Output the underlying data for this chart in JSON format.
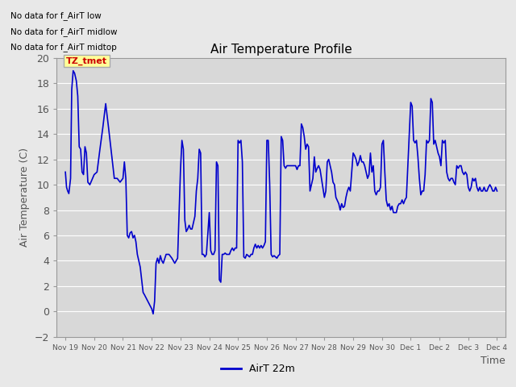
{
  "title": "Air Temperature Profile",
  "xlabel": "Time",
  "ylabel": "Air Temperature (C)",
  "ylim": [
    -2,
    20
  ],
  "yticks": [
    -2,
    0,
    2,
    4,
    6,
    8,
    10,
    12,
    14,
    16,
    18,
    20
  ],
  "line_color": "#0000CC",
  "line_width": 1.2,
  "background_color": "#E8E8E8",
  "plot_bg_color": "#D8D8D8",
  "legend_label": "AirT 22m",
  "text_annotations": [
    "No data for f_AirT low",
    "No data for f_AirT midlow",
    "No data for f_AirT midtop"
  ],
  "legend_box_color": "#FFFF99",
  "legend_box_edge": "#CCCC00",
  "legend_text_color": "#CC0000",
  "legend_box_text": "TZ_tmet",
  "xtick_labels": [
    "Nov 19",
    "Nov 20",
    "Nov 21",
    "Nov 22",
    "Nov 23",
    "Nov 24",
    "Nov 25",
    "Nov 26",
    "Nov 27",
    "Nov 28",
    "Nov 29",
    "Nov 30",
    "Dec 1",
    "Dec 2",
    "Dec 3",
    "Dec 4"
  ],
  "temp_data": [
    [
      0.0,
      11.0
    ],
    [
      0.04,
      9.8
    ],
    [
      0.08,
      9.5
    ],
    [
      0.12,
      9.3
    ],
    [
      0.18,
      10.5
    ],
    [
      0.22,
      17.5
    ],
    [
      0.27,
      19.0
    ],
    [
      0.32,
      18.8
    ],
    [
      0.38,
      18.2
    ],
    [
      0.43,
      17.0
    ],
    [
      0.48,
      13.0
    ],
    [
      0.53,
      12.8
    ],
    [
      0.58,
      11.0
    ],
    [
      0.63,
      10.8
    ],
    [
      0.68,
      13.0
    ],
    [
      0.73,
      12.5
    ],
    [
      0.78,
      10.2
    ],
    [
      0.85,
      10.0
    ],
    [
      1.0,
      10.8
    ],
    [
      1.1,
      11.0
    ],
    [
      1.2,
      12.8
    ],
    [
      1.3,
      14.5
    ],
    [
      1.4,
      16.4
    ],
    [
      1.5,
      14.5
    ],
    [
      1.6,
      12.5
    ],
    [
      1.7,
      10.5
    ],
    [
      1.8,
      10.5
    ],
    [
      1.9,
      10.2
    ],
    [
      2.0,
      10.5
    ],
    [
      2.05,
      11.8
    ],
    [
      2.1,
      10.5
    ],
    [
      2.15,
      6.0
    ],
    [
      2.2,
      5.8
    ],
    [
      2.25,
      6.2
    ],
    [
      2.3,
      6.3
    ],
    [
      2.35,
      5.8
    ],
    [
      2.4,
      6.0
    ],
    [
      2.45,
      5.5
    ],
    [
      2.5,
      4.5
    ],
    [
      2.6,
      3.5
    ],
    [
      2.7,
      1.5
    ],
    [
      2.75,
      1.3
    ],
    [
      3.0,
      0.2
    ],
    [
      3.05,
      -0.2
    ],
    [
      3.1,
      0.8
    ],
    [
      3.15,
      3.8
    ],
    [
      3.2,
      4.2
    ],
    [
      3.25,
      3.8
    ],
    [
      3.3,
      4.4
    ],
    [
      3.35,
      4.0
    ],
    [
      3.4,
      3.8
    ],
    [
      3.5,
      4.5
    ],
    [
      3.6,
      4.5
    ],
    [
      3.7,
      4.2
    ],
    [
      3.8,
      3.8
    ],
    [
      3.9,
      4.2
    ],
    [
      4.0,
      11.2
    ],
    [
      4.05,
      13.5
    ],
    [
      4.1,
      12.8
    ],
    [
      4.15,
      7.2
    ],
    [
      4.2,
      6.3
    ],
    [
      4.25,
      6.5
    ],
    [
      4.3,
      6.8
    ],
    [
      4.35,
      6.5
    ],
    [
      4.4,
      6.5
    ],
    [
      4.45,
      7.0
    ],
    [
      4.5,
      7.5
    ],
    [
      4.55,
      9.5
    ],
    [
      4.6,
      10.5
    ],
    [
      4.65,
      12.8
    ],
    [
      4.7,
      12.5
    ],
    [
      4.75,
      4.5
    ],
    [
      4.8,
      4.5
    ],
    [
      4.85,
      4.3
    ],
    [
      4.9,
      4.5
    ],
    [
      5.0,
      7.8
    ],
    [
      5.05,
      4.8
    ],
    [
      5.1,
      4.5
    ],
    [
      5.15,
      4.5
    ],
    [
      5.2,
      4.8
    ],
    [
      5.25,
      11.8
    ],
    [
      5.3,
      11.5
    ],
    [
      5.35,
      2.5
    ],
    [
      5.4,
      2.3
    ],
    [
      5.45,
      4.5
    ],
    [
      5.5,
      4.5
    ],
    [
      5.55,
      4.6
    ],
    [
      5.6,
      4.5
    ],
    [
      5.65,
      4.5
    ],
    [
      5.7,
      4.5
    ],
    [
      5.75,
      4.8
    ],
    [
      5.8,
      5.0
    ],
    [
      5.85,
      4.8
    ],
    [
      5.9,
      5.0
    ],
    [
      5.95,
      5.0
    ],
    [
      6.0,
      13.5
    ],
    [
      6.05,
      13.3
    ],
    [
      6.1,
      13.5
    ],
    [
      6.15,
      11.8
    ],
    [
      6.2,
      4.3
    ],
    [
      6.25,
      4.2
    ],
    [
      6.3,
      4.5
    ],
    [
      6.35,
      4.4
    ],
    [
      6.4,
      4.3
    ],
    [
      6.45,
      4.5
    ],
    [
      6.5,
      4.5
    ],
    [
      6.55,
      5.0
    ],
    [
      6.6,
      5.3
    ],
    [
      6.65,
      5.0
    ],
    [
      6.7,
      5.2
    ],
    [
      6.75,
      5.0
    ],
    [
      6.8,
      5.2
    ],
    [
      6.85,
      5.0
    ],
    [
      6.9,
      5.2
    ],
    [
      6.95,
      5.5
    ],
    [
      7.0,
      13.5
    ],
    [
      7.05,
      13.5
    ],
    [
      7.1,
      10.0
    ],
    [
      7.15,
      4.5
    ],
    [
      7.2,
      4.3
    ],
    [
      7.25,
      4.4
    ],
    [
      7.3,
      4.3
    ],
    [
      7.35,
      4.2
    ],
    [
      7.4,
      4.4
    ],
    [
      7.45,
      4.5
    ],
    [
      7.5,
      13.8
    ],
    [
      7.55,
      13.5
    ],
    [
      7.6,
      11.5
    ],
    [
      7.65,
      11.3
    ],
    [
      7.7,
      11.5
    ],
    [
      7.75,
      11.5
    ],
    [
      7.8,
      11.5
    ],
    [
      7.85,
      11.5
    ],
    [
      8.0,
      11.5
    ],
    [
      8.05,
      11.2
    ],
    [
      8.1,
      11.5
    ],
    [
      8.15,
      11.5
    ],
    [
      8.2,
      14.8
    ],
    [
      8.25,
      14.5
    ],
    [
      8.3,
      13.8
    ],
    [
      8.35,
      12.8
    ],
    [
      8.4,
      13.2
    ],
    [
      8.45,
      13.0
    ],
    [
      8.5,
      9.5
    ],
    [
      8.55,
      10.0
    ],
    [
      8.6,
      10.5
    ],
    [
      8.65,
      12.2
    ],
    [
      8.7,
      11.0
    ],
    [
      8.75,
      11.3
    ],
    [
      8.8,
      11.5
    ],
    [
      8.85,
      11.2
    ],
    [
      9.0,
      9.0
    ],
    [
      9.05,
      9.5
    ],
    [
      9.1,
      11.8
    ],
    [
      9.15,
      12.0
    ],
    [
      9.2,
      11.5
    ],
    [
      9.25,
      11.0
    ],
    [
      9.3,
      10.2
    ],
    [
      9.35,
      10.0
    ],
    [
      9.4,
      9.0
    ],
    [
      9.5,
      8.5
    ],
    [
      9.55,
      8.0
    ],
    [
      9.6,
      8.5
    ],
    [
      9.65,
      8.2
    ],
    [
      9.7,
      8.3
    ],
    [
      9.75,
      9.0
    ],
    [
      9.8,
      9.5
    ],
    [
      9.85,
      9.8
    ],
    [
      9.9,
      9.5
    ],
    [
      10.0,
      12.5
    ],
    [
      10.05,
      12.3
    ],
    [
      10.1,
      12.0
    ],
    [
      10.15,
      11.5
    ],
    [
      10.2,
      11.8
    ],
    [
      10.25,
      12.3
    ],
    [
      10.3,
      11.8
    ],
    [
      10.35,
      11.8
    ],
    [
      10.4,
      11.5
    ],
    [
      10.45,
      11.0
    ],
    [
      10.5,
      10.5
    ],
    [
      10.55,
      10.8
    ],
    [
      10.6,
      12.5
    ],
    [
      10.65,
      11.0
    ],
    [
      10.7,
      11.5
    ],
    [
      10.75,
      9.5
    ],
    [
      10.8,
      9.2
    ],
    [
      10.85,
      9.5
    ],
    [
      10.9,
      9.5
    ],
    [
      10.95,
      9.8
    ],
    [
      11.0,
      13.2
    ],
    [
      11.05,
      13.5
    ],
    [
      11.1,
      11.0
    ],
    [
      11.15,
      8.8
    ],
    [
      11.2,
      8.3
    ],
    [
      11.25,
      8.5
    ],
    [
      11.3,
      8.0
    ],
    [
      11.35,
      8.3
    ],
    [
      11.4,
      7.8
    ],
    [
      11.45,
      7.8
    ],
    [
      11.5,
      7.8
    ],
    [
      11.55,
      8.3
    ],
    [
      11.6,
      8.5
    ],
    [
      11.65,
      8.5
    ],
    [
      11.7,
      8.8
    ],
    [
      11.75,
      8.5
    ],
    [
      11.8,
      8.8
    ],
    [
      11.85,
      9.0
    ],
    [
      12.0,
      16.5
    ],
    [
      12.05,
      16.2
    ],
    [
      12.1,
      13.5
    ],
    [
      12.15,
      13.3
    ],
    [
      12.2,
      13.5
    ],
    [
      12.25,
      12.2
    ],
    [
      12.3,
      10.5
    ],
    [
      12.35,
      9.2
    ],
    [
      12.4,
      9.5
    ],
    [
      12.45,
      9.5
    ],
    [
      12.5,
      10.8
    ],
    [
      12.55,
      13.5
    ],
    [
      12.6,
      13.3
    ],
    [
      12.65,
      13.5
    ],
    [
      12.7,
      16.8
    ],
    [
      12.75,
      16.5
    ],
    [
      12.8,
      13.2
    ],
    [
      12.85,
      13.5
    ],
    [
      12.9,
      13.0
    ],
    [
      12.95,
      12.5
    ],
    [
      13.0,
      12.2
    ],
    [
      13.05,
      11.5
    ],
    [
      13.1,
      13.5
    ],
    [
      13.15,
      13.3
    ],
    [
      13.2,
      13.5
    ],
    [
      13.25,
      11.0
    ],
    [
      13.3,
      10.5
    ],
    [
      13.35,
      10.3
    ],
    [
      13.4,
      10.5
    ],
    [
      13.45,
      10.5
    ],
    [
      13.5,
      10.2
    ],
    [
      13.55,
      10.0
    ],
    [
      13.6,
      11.5
    ],
    [
      13.65,
      11.3
    ],
    [
      13.7,
      11.5
    ],
    [
      13.75,
      11.5
    ],
    [
      13.8,
      11.0
    ],
    [
      13.85,
      10.8
    ],
    [
      13.9,
      11.0
    ],
    [
      13.95,
      10.8
    ],
    [
      14.0,
      9.8
    ],
    [
      14.05,
      9.5
    ],
    [
      14.1,
      9.8
    ],
    [
      14.15,
      10.5
    ],
    [
      14.2,
      10.3
    ],
    [
      14.25,
      10.5
    ],
    [
      14.3,
      9.8
    ],
    [
      14.35,
      9.5
    ],
    [
      14.4,
      9.8
    ],
    [
      14.45,
      9.5
    ],
    [
      14.5,
      9.5
    ],
    [
      14.55,
      9.8
    ],
    [
      14.6,
      9.5
    ],
    [
      14.65,
      9.5
    ],
    [
      14.7,
      9.8
    ],
    [
      14.75,
      10.0
    ],
    [
      14.8,
      9.8
    ],
    [
      14.85,
      9.5
    ],
    [
      14.9,
      9.5
    ],
    [
      14.95,
      9.8
    ],
    [
      15.0,
      9.5
    ]
  ]
}
